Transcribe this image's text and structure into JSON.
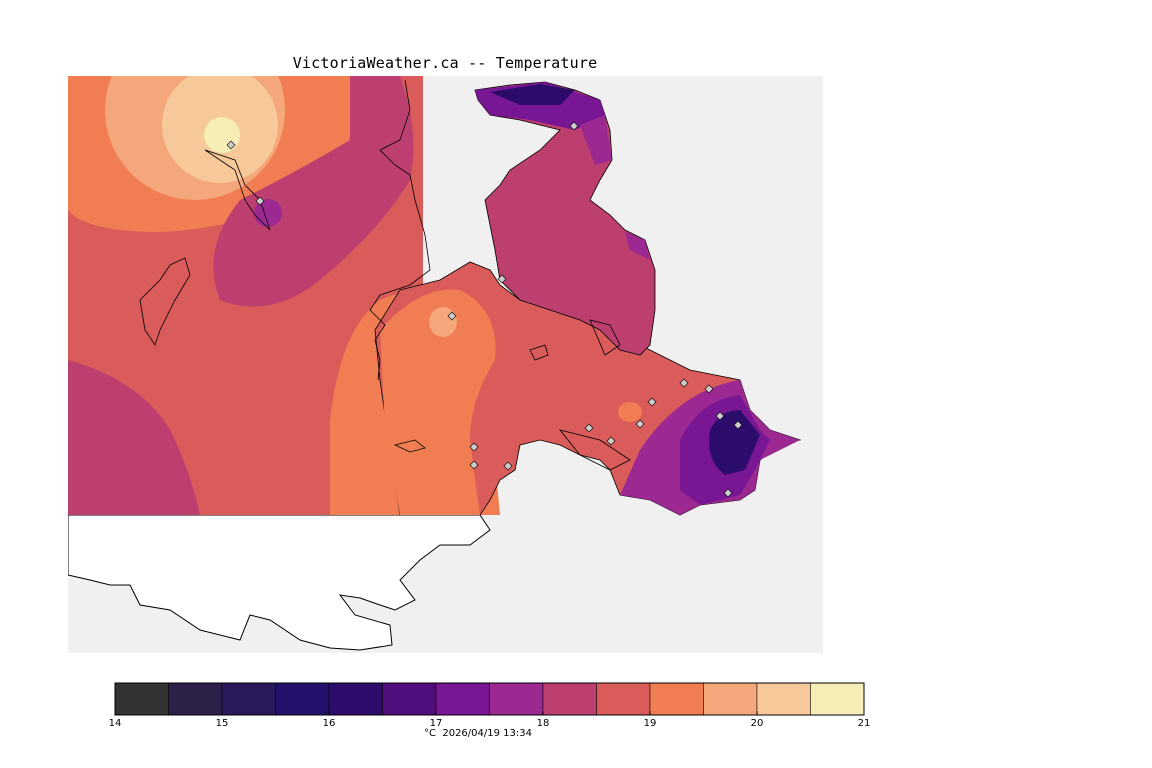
{
  "title": "VictoriaWeather.ca -- Temperature",
  "units": "°C",
  "timestamp": "2026/04/19 13:34",
  "caption": "°C  2026/04/19 13:34",
  "legend": {
    "bins": [
      {
        "from": 14,
        "to": 14.5,
        "color": "#333333"
      },
      {
        "from": 14.5,
        "to": 15,
        "color": "#2e2149"
      },
      {
        "from": 15,
        "to": 15.5,
        "color": "#2a1a5c"
      },
      {
        "from": 15.5,
        "to": 16,
        "color": "#22106b"
      },
      {
        "from": 16,
        "to": 16.5,
        "color": "#2c0c6a"
      },
      {
        "from": 16.5,
        "to": 17,
        "color": "#4f0e7c"
      },
      {
        "from": 17,
        "to": 17.5,
        "color": "#781694"
      },
      {
        "from": 17.5,
        "to": 18,
        "color": "#9c2891"
      },
      {
        "from": 18,
        "to": 18.5,
        "color": "#bd3f6f"
      },
      {
        "from": 18.5,
        "to": 19,
        "color": "#d95b5a"
      },
      {
        "from": 19,
        "to": 19.5,
        "color": "#f07e52"
      },
      {
        "from": 19.5,
        "to": 20,
        "color": "#f3a77a"
      },
      {
        "from": 20,
        "to": 20.5,
        "color": "#f6c89a"
      },
      {
        "from": 20.5,
        "to": 21,
        "color": "#f7eeb7"
      }
    ],
    "tick_labels": [
      "14",
      "15",
      "16",
      "17",
      "18",
      "19",
      "20",
      "21"
    ]
  },
  "colors": {
    "water": "#f0f0f0",
    "land_outside": "#ffffff",
    "station_marker": "#cccccc"
  }
}
